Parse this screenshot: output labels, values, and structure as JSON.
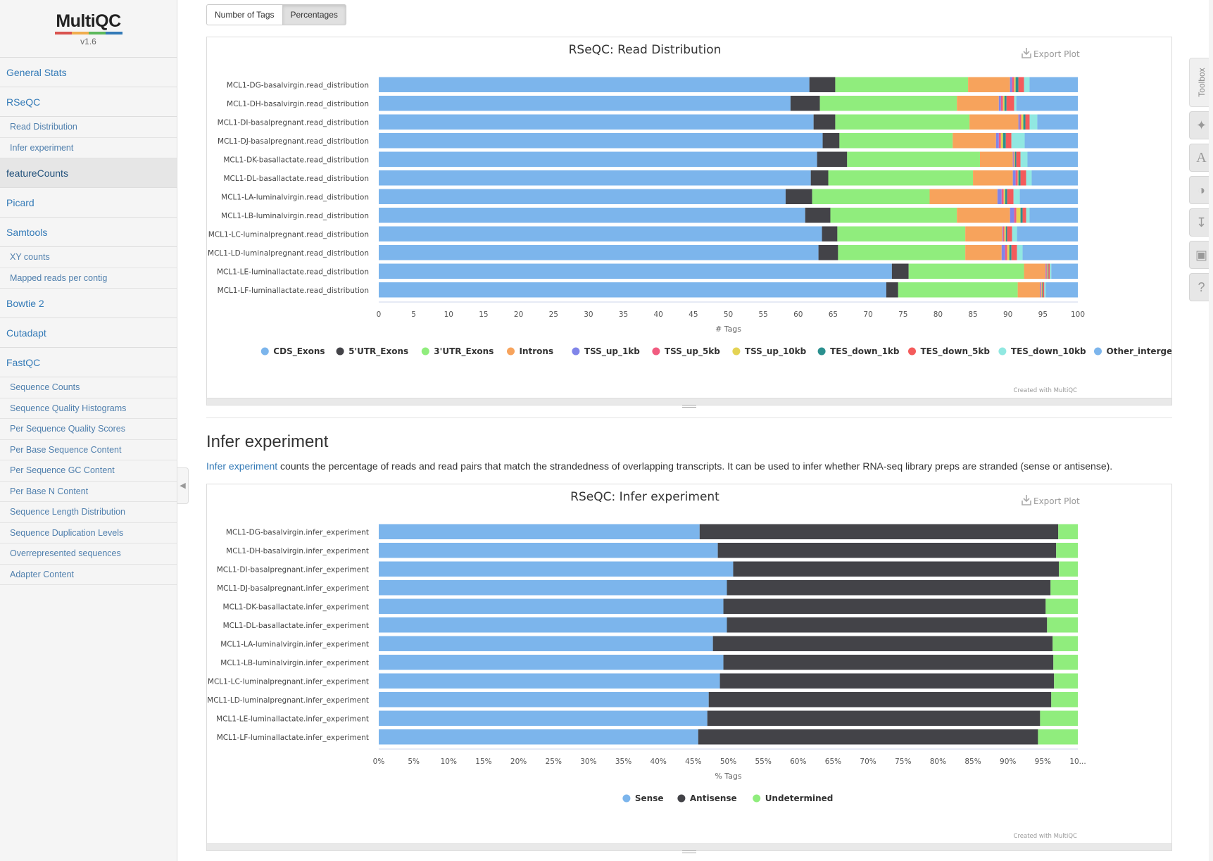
{
  "logo": {
    "name": "MultiQC",
    "version": "v1.6"
  },
  "nav": [
    {
      "label": "General Stats",
      "children": []
    },
    {
      "label": "RSeQC",
      "children": [
        "Read Distribution",
        "Infer experiment"
      ]
    },
    {
      "label": "featureCounts",
      "children": [],
      "active": true
    },
    {
      "label": "Picard",
      "children": []
    },
    {
      "label": "Samtools",
      "children": [
        "XY counts",
        "Mapped reads per contig"
      ]
    },
    {
      "label": "Bowtie 2",
      "children": []
    },
    {
      "label": "Cutadapt",
      "children": []
    },
    {
      "label": "FastQC",
      "children": [
        "Sequence Counts",
        "Sequence Quality Histograms",
        "Per Sequence Quality Scores",
        "Per Base Sequence Content",
        "Per Sequence GC Content",
        "Per Base N Content",
        "Sequence Length Distribution",
        "Sequence Duplication Levels",
        "Overrepresented sequences",
        "Adapter Content"
      ]
    }
  ],
  "toggle": {
    "counts_label": "Number of Tags",
    "percent_label": "Percentages"
  },
  "export_label": "Export Plot",
  "credit": "Created with MultiQC",
  "infer_section": {
    "title": "Infer experiment",
    "link_text": "Infer experiment",
    "description": " counts the percentage of reads and read pairs that match the strandedness of overlapping transcripts. It can be used to infer whether RNA-seq library preps are stranded (sense or antisense)."
  },
  "toolbox": {
    "tab_label": "Toolbox"
  },
  "colors": {
    "CDS_Exons": "#7cb5ec",
    "5'UTR_Exons": "#434348",
    "3'UTR_Exons": "#90ed7d",
    "Introns": "#f7a35c",
    "TSS_up_1kb": "#8085e9",
    "TSS_up_5kb": "#f15c80",
    "TSS_up_10kb": "#e4d354",
    "TES_down_1kb": "#2b908f",
    "TES_down_5kb": "#f45b5b",
    "TES_down_10kb": "#91e8e1",
    "Other_intergenic": "#7cb5ec",
    "Sense": "#7cb5ec",
    "Antisense": "#434348",
    "Undetermined": "#90ed7d"
  },
  "chart_data": [
    {
      "type": "bar",
      "orientation": "horizontal",
      "stacked": "percent",
      "title": "RSeQC: Read Distribution",
      "xlabel": "# Tags",
      "xlim": [
        0,
        100
      ],
      "xticks": [
        "0",
        "5",
        "10",
        "15",
        "20",
        "25",
        "30",
        "35",
        "40",
        "45",
        "50",
        "55",
        "60",
        "65",
        "70",
        "75",
        "80",
        "85",
        "90",
        "95",
        "100"
      ],
      "categories": [
        "MCL1-DG-basalvirgin.read_distribution",
        "MCL1-DH-basalvirgin.read_distribution",
        "MCL1-DI-basalpregnant.read_distribution",
        "MCL1-DJ-basalpregnant.read_distribution",
        "MCL1-DK-basallactate.read_distribution",
        "MCL1-DL-basallactate.read_distribution",
        "MCL1-LA-luminalvirgin.read_distribution",
        "MCL1-LB-luminalvirgin.read_distribution",
        "MCL1-LC-luminalpregnant.read_distribution",
        "MCL1-LD-luminalpregnant.read_distribution",
        "MCL1-LE-luminallactate.read_distribution",
        "MCL1-LF-luminallactate.read_distribution"
      ],
      "series": [
        {
          "name": "CDS_Exons",
          "values": [
            61.6,
            58.9,
            62.2,
            63.5,
            62.7,
            61.8,
            58.2,
            61.0,
            63.4,
            62.9,
            73.4,
            72.6
          ]
        },
        {
          "name": "5'UTR_Exons",
          "values": [
            3.7,
            4.2,
            3.1,
            2.4,
            4.3,
            2.5,
            3.8,
            3.6,
            2.2,
            2.8,
            2.4,
            1.7
          ]
        },
        {
          "name": "3'UTR_Exons",
          "values": [
            19.0,
            19.6,
            19.2,
            16.2,
            19.0,
            20.7,
            16.8,
            18.1,
            18.3,
            18.2,
            16.5,
            17.1
          ]
        },
        {
          "name": "Introns",
          "values": [
            6.0,
            6.0,
            7.0,
            6.2,
            4.7,
            5.7,
            9.7,
            7.6,
            5.3,
            5.2,
            3.1,
            3.2
          ]
        },
        {
          "name": "TSS_up_1kb",
          "values": [
            0.3,
            0.3,
            0.2,
            0.4,
            0.1,
            0.4,
            0.6,
            0.6,
            0.1,
            0.5,
            0.1,
            0.1
          ]
        },
        {
          "name": "TSS_up_5kb",
          "values": [
            0.3,
            0.3,
            0.2,
            0.3,
            0.1,
            0.3,
            0.3,
            0.3,
            0.2,
            0.3,
            0.1,
            0.1
          ]
        },
        {
          "name": "TSS_up_10kb",
          "values": [
            0.2,
            0.2,
            0.3,
            0.3,
            0.1,
            0.1,
            0.2,
            0.6,
            0.2,
            0.3,
            0.1,
            0.1
          ]
        },
        {
          "name": "TES_down_1kb",
          "values": [
            0.4,
            0.3,
            0.3,
            0.4,
            0.2,
            0.3,
            0.3,
            0.3,
            0.2,
            0.3,
            0.1,
            0.1
          ]
        },
        {
          "name": "TES_down_5kb",
          "values": [
            0.8,
            1.1,
            0.6,
            0.8,
            0.6,
            0.8,
            0.9,
            0.5,
            0.7,
            0.8,
            0.2,
            0.2
          ]
        },
        {
          "name": "TES_down_10kb",
          "values": [
            0.8,
            0.3,
            1.1,
            1.9,
            1.0,
            0.8,
            0.9,
            0.5,
            0.7,
            0.8,
            0.2,
            0.2
          ]
        },
        {
          "name": "Other_intergenic",
          "values": [
            6.9,
            8.8,
            5.8,
            7.6,
            7.2,
            6.6,
            8.3,
            6.9,
            8.7,
            7.9,
            3.8,
            4.6
          ]
        }
      ]
    },
    {
      "type": "bar",
      "orientation": "horizontal",
      "stacked": "percent",
      "title": "RSeQC: Infer experiment",
      "xlabel": "% Tags",
      "xlim": [
        0,
        100
      ],
      "xticks": [
        "0%",
        "5%",
        "10%",
        "15%",
        "20%",
        "25%",
        "30%",
        "35%",
        "40%",
        "45%",
        "50%",
        "55%",
        "60%",
        "65%",
        "70%",
        "75%",
        "80%",
        "85%",
        "90%",
        "95%",
        "10..."
      ],
      "categories": [
        "MCL1-DG-basalvirgin.infer_experiment",
        "MCL1-DH-basalvirgin.infer_experiment",
        "MCL1-DI-basalpregnant.infer_experiment",
        "MCL1-DJ-basalpregnant.infer_experiment",
        "MCL1-DK-basallactate.infer_experiment",
        "MCL1-DL-basallactate.infer_experiment",
        "MCL1-LA-luminalvirgin.infer_experiment",
        "MCL1-LB-luminalvirgin.infer_experiment",
        "MCL1-LC-luminalpregnant.infer_experiment",
        "MCL1-LD-luminalpregnant.infer_experiment",
        "MCL1-LE-luminallactate.infer_experiment",
        "MCL1-LF-luminallactate.infer_experiment"
      ],
      "series": [
        {
          "name": "Sense",
          "values": [
            45.9,
            48.5,
            50.7,
            49.8,
            49.3,
            49.8,
            47.8,
            49.3,
            48.8,
            47.2,
            47.0,
            45.7
          ]
        },
        {
          "name": "Antisense",
          "values": [
            51.3,
            48.4,
            46.6,
            46.3,
            46.1,
            45.8,
            48.6,
            47.2,
            47.8,
            49.0,
            47.6,
            48.6
          ]
        },
        {
          "name": "Undetermined",
          "values": [
            2.8,
            3.1,
            2.7,
            3.9,
            4.6,
            4.4,
            3.6,
            3.5,
            3.4,
            3.8,
            5.4,
            5.7
          ]
        }
      ]
    }
  ]
}
